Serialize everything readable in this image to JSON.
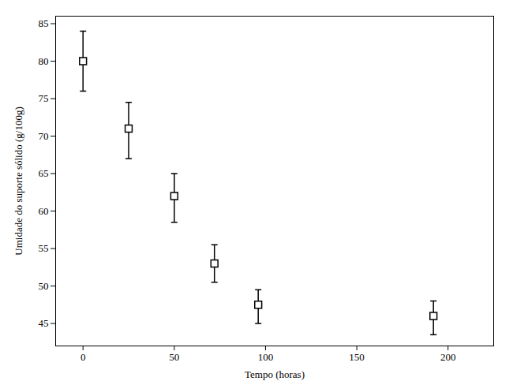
{
  "chart_data": {
    "type": "scatter",
    "xlabel": "Tempo (horas)",
    "ylabel": "Umidade do suporte sólido (g/100g)",
    "x": [
      0,
      25,
      50,
      72,
      96,
      192
    ],
    "values": [
      80.0,
      71.0,
      62.0,
      53.0,
      47.5,
      46.0
    ],
    "yerr_lower": [
      4.0,
      4.0,
      3.5,
      2.5,
      2.5,
      2.5
    ],
    "yerr_upper": [
      4.0,
      3.5,
      3.0,
      2.5,
      2.0,
      2.0
    ],
    "xlim": [
      -15,
      225
    ],
    "ylim": [
      42,
      86
    ],
    "xticks": [
      0,
      50,
      100,
      150,
      200
    ],
    "yticks": [
      45,
      50,
      55,
      60,
      65,
      70,
      75,
      80,
      85
    ],
    "marker": "square",
    "color": "black",
    "grid": false
  }
}
